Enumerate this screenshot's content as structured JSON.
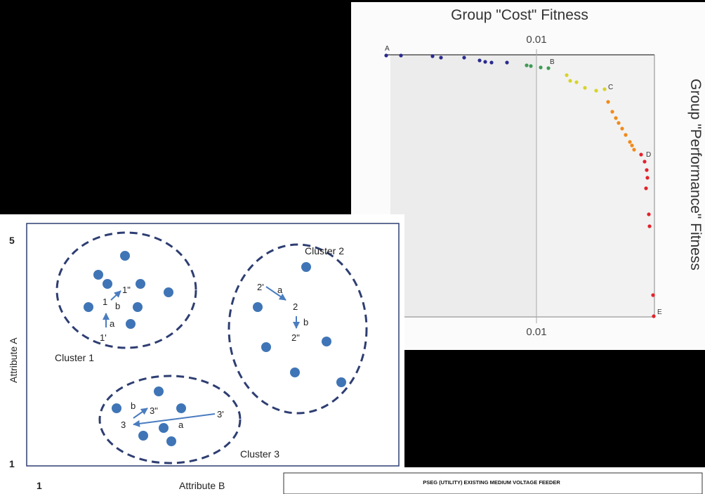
{
  "pareto": {
    "title": "Group \"Cost\" Fitness",
    "side_label": "Group \"Performance\" Fitness",
    "tick_top": "0.01",
    "tick_bottom": "0.01",
    "points": {
      "A": "A",
      "B": "B",
      "C": "C",
      "D": "D",
      "E": "E"
    },
    "colors": {
      "blue": "#2a2a8f",
      "green": "#3f9a55",
      "yellow": "#d7d428",
      "orange": "#f08a1c",
      "red": "#e3222a"
    }
  },
  "cluster_chart": {
    "y_axis_label": "Attribute A",
    "x_axis_label": "Attribute B",
    "y_max": "5",
    "y_min": "1",
    "x_min": "1",
    "clusters": {
      "c1": {
        "label": "Cluster 1",
        "p1": "1",
        "p1_prime": "1'",
        "p1_dprime": "1\"",
        "a": "a",
        "b": "b"
      },
      "c2": {
        "label": "Cluster 2",
        "p2": "2",
        "p2_prime": "2'",
        "p2_dprime": "2\"",
        "a": "a",
        "b": "b"
      },
      "c3": {
        "label": "Cluster 3",
        "p3": "3",
        "p3_prime": "3'",
        "p3_dprime": "3\"",
        "a": "a",
        "b": "b"
      }
    },
    "colors": {
      "dot": "#3f75b6",
      "border": "#2e3e72",
      "arrow": "#4a7cc0"
    }
  },
  "feeder": {
    "title": "PSEG (UTILITY) EXISTING MEDIUM VOLTAGE FEEDER"
  }
}
